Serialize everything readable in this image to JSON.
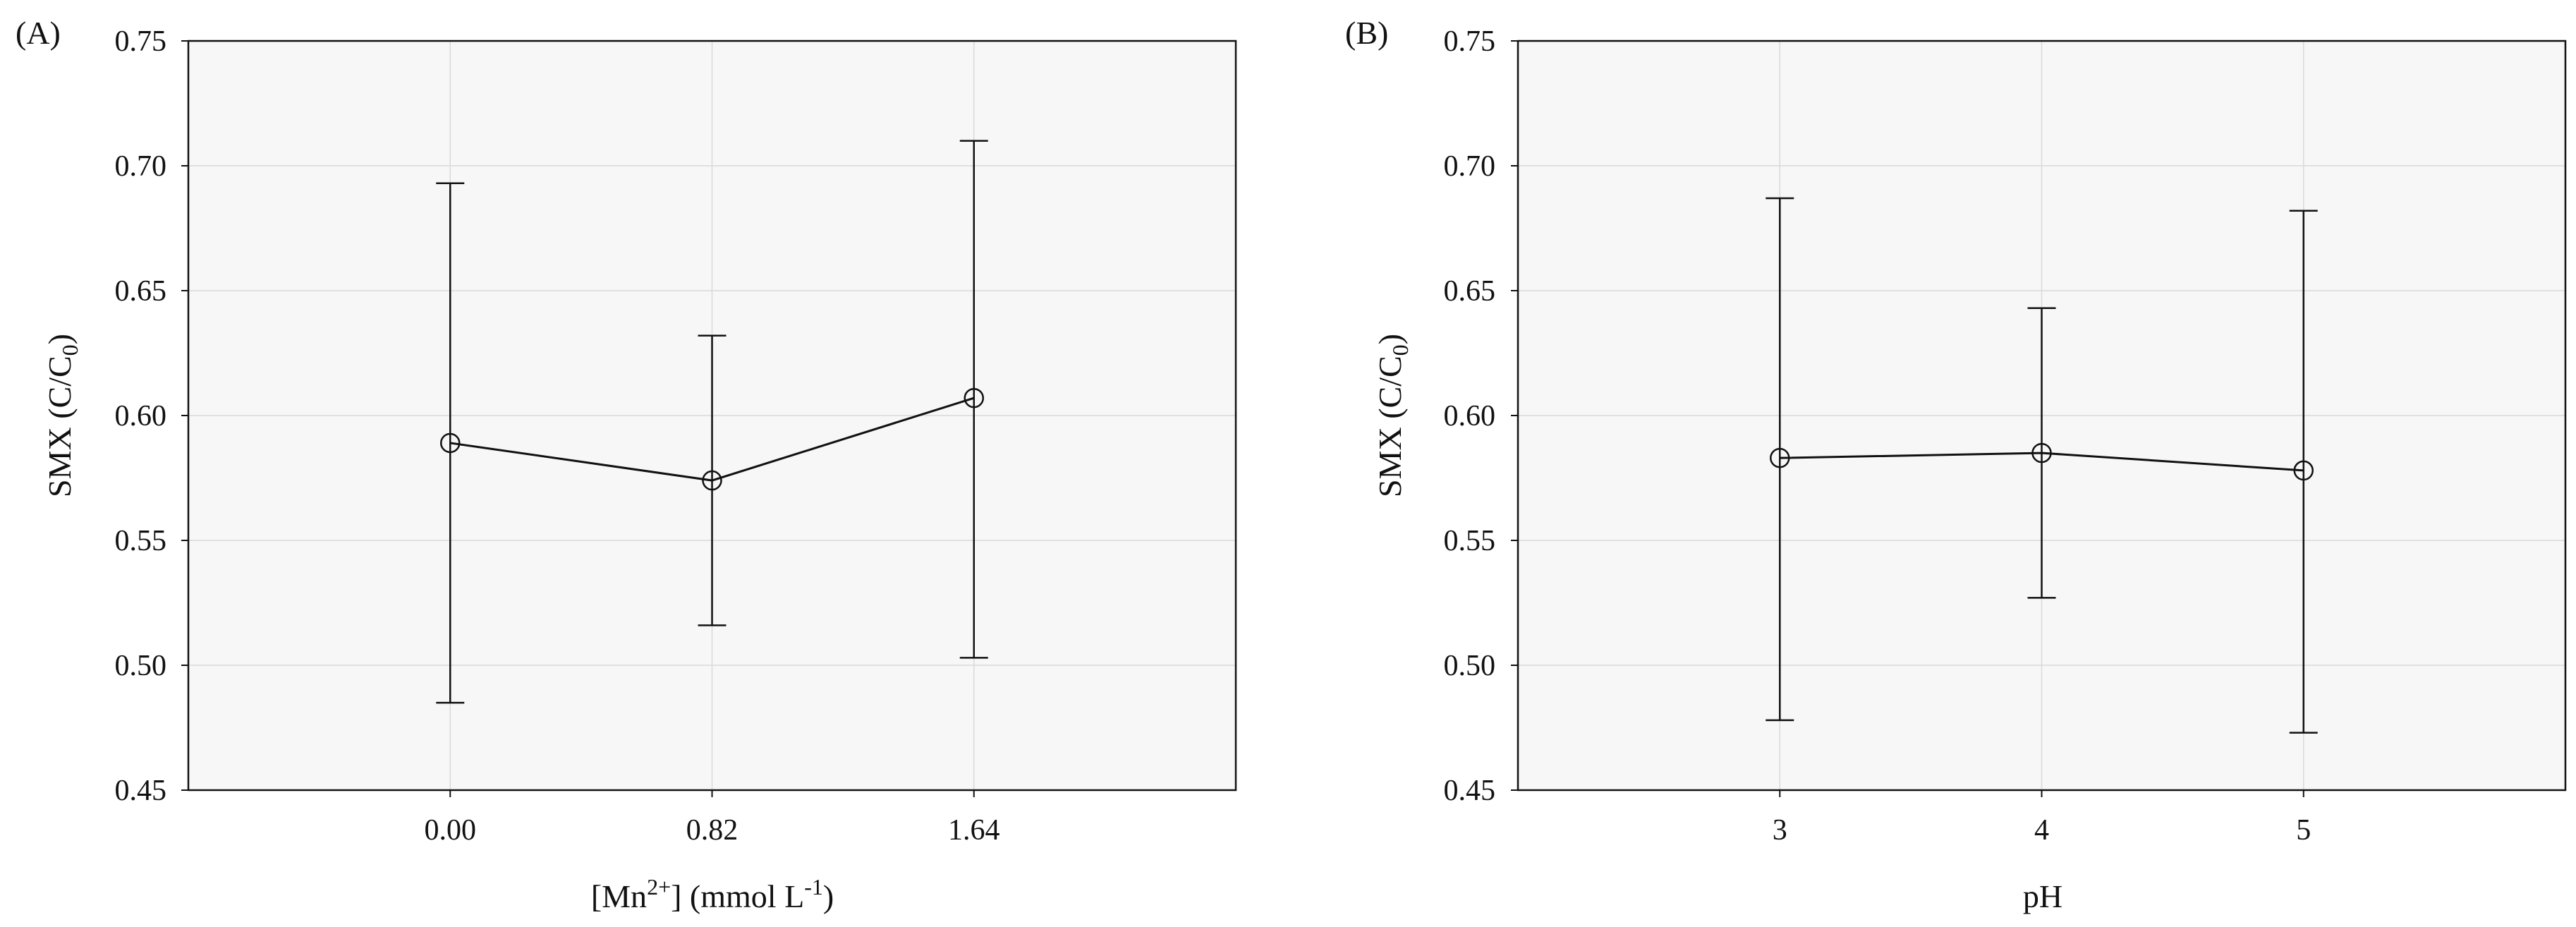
{
  "chart_data": [
    {
      "type": "line",
      "panel_label": "(A)",
      "categories": [
        "0.00",
        "0.82",
        "1.64"
      ],
      "series": [
        {
          "values": [
            0.589,
            0.574,
            0.607
          ],
          "error_low": [
            0.485,
            0.516,
            0.503
          ],
          "error_high": [
            0.693,
            0.632,
            0.71
          ]
        }
      ],
      "ylim": [
        0.45,
        0.75
      ],
      "yticks": [
        "0.45",
        "0.50",
        "0.55",
        "0.60",
        "0.65",
        "0.70",
        "0.75"
      ],
      "ylabel": {
        "main": "SMX (C/C",
        "sub": "0",
        "end": ")"
      },
      "xlabel": {
        "pre": "[Mn",
        "sup": "2+",
        "mid": "] (mmol L",
        "sup2": "-1",
        "end": ")"
      },
      "grid": true,
      "marker": "open-circle",
      "line_color": "#111111",
      "plot_background": "#f7f7f7"
    },
    {
      "type": "line",
      "panel_label": "(B)",
      "categories": [
        "3",
        "4",
        "5"
      ],
      "series": [
        {
          "values": [
            0.583,
            0.585,
            0.578
          ],
          "error_low": [
            0.478,
            0.527,
            0.473
          ],
          "error_high": [
            0.687,
            0.643,
            0.682
          ]
        }
      ],
      "ylim": [
        0.45,
        0.75
      ],
      "yticks": [
        "0.45",
        "0.50",
        "0.55",
        "0.60",
        "0.65",
        "0.70",
        "0.75"
      ],
      "ylabel": {
        "main": "SMX (C/C",
        "sub": "0",
        "end": ")"
      },
      "xlabel": {
        "pre": "pH"
      },
      "grid": true,
      "marker": "open-circle",
      "line_color": "#111111",
      "plot_background": "#f7f7f7"
    }
  ]
}
